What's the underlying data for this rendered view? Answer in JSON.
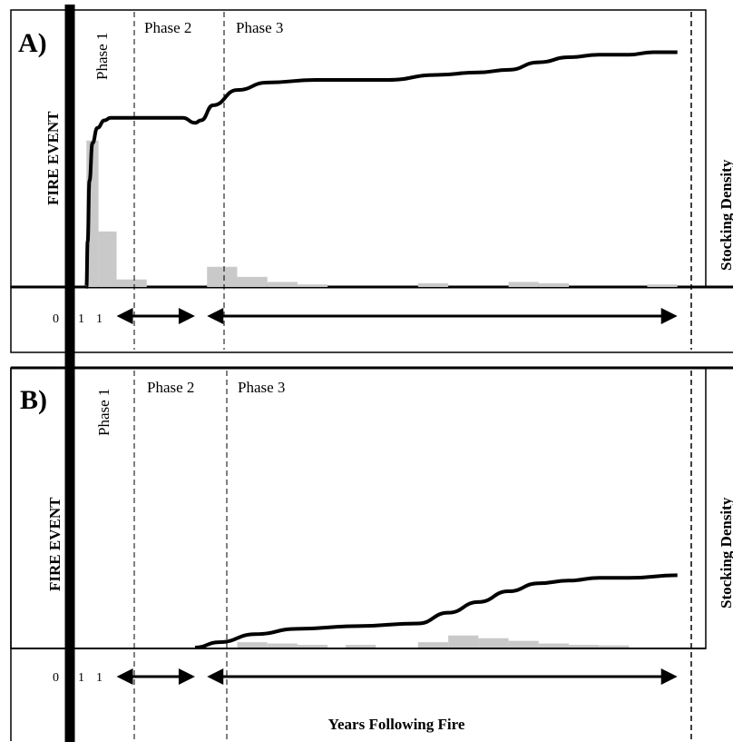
{
  "chart_data": [
    {
      "type": "line",
      "panel_label": "A)",
      "phase_labels": [
        "Phase 1",
        "Phase 2",
        "Phase 3"
      ],
      "event_label": "FIRE EVENT",
      "ylabel": "Stocking Density",
      "x_tick_labels": [
        "0",
        "1",
        "1"
      ],
      "curve": [
        [
          0,
          0.0
        ],
        [
          0.02,
          0.18
        ],
        [
          0.05,
          0.42
        ],
        [
          0.1,
          0.57
        ],
        [
          0.18,
          0.63
        ],
        [
          0.3,
          0.66
        ],
        [
          0.4,
          0.67
        ],
        [
          1,
          0.67
        ],
        [
          1.6,
          0.67
        ],
        [
          1.8,
          0.65
        ],
        [
          1.9,
          0.66
        ],
        [
          2.1,
          0.72
        ],
        [
          2.5,
          0.78
        ],
        [
          3,
          0.81
        ],
        [
          3.8,
          0.82
        ],
        [
          5,
          0.82
        ],
        [
          5.8,
          0.84
        ],
        [
          6.5,
          0.85
        ],
        [
          7,
          0.86
        ],
        [
          7.5,
          0.89
        ],
        [
          8,
          0.91
        ],
        [
          8.5,
          0.92
        ],
        [
          9,
          0.92
        ],
        [
          9.4,
          0.93
        ],
        [
          9.8,
          0.93
        ]
      ],
      "bars": [
        [
          0,
          0.2,
          0.58
        ],
        [
          0.2,
          0.5,
          0.22
        ],
        [
          0.5,
          1,
          0.03
        ],
        [
          2,
          2.5,
          0.08
        ],
        [
          2.5,
          3,
          0.04
        ],
        [
          3,
          3.5,
          0.02
        ],
        [
          3.5,
          4,
          0.01
        ],
        [
          5.5,
          6,
          0.015
        ],
        [
          7,
          7.5,
          0.02
        ],
        [
          7.5,
          8,
          0.015
        ],
        [
          9.3,
          9.8,
          0.01
        ]
      ],
      "arrow_spans": [
        [
          0.5,
          1.8
        ],
        [
          2.0,
          9.8
        ]
      ],
      "xlim": [
        -0.2,
        10
      ],
      "ylim": [
        0,
        1
      ]
    },
    {
      "type": "line",
      "panel_label": "B)",
      "phase_labels": [
        "Phase 1",
        "Phase 2",
        "Phase 3"
      ],
      "event_label": "FIRE EVENT",
      "ylabel": "Stocking Density",
      "x_tick_labels": [
        "0",
        "1",
        "1"
      ],
      "xlabel": "Years Following Fire",
      "curve": [
        [
          1.8,
          0
        ],
        [
          2.2,
          0.02
        ],
        [
          2.8,
          0.05
        ],
        [
          3.5,
          0.07
        ],
        [
          4.5,
          0.08
        ],
        [
          5.5,
          0.09
        ],
        [
          6,
          0.13
        ],
        [
          6.5,
          0.17
        ],
        [
          7,
          0.21
        ],
        [
          7.5,
          0.24
        ],
        [
          8,
          0.25
        ],
        [
          8.5,
          0.26
        ],
        [
          9.0,
          0.26
        ],
        [
          9.8,
          0.27
        ]
      ],
      "bars": [
        [
          2.5,
          3,
          0.02
        ],
        [
          3,
          3.5,
          0.015
        ],
        [
          3.5,
          4,
          0.01
        ],
        [
          4.3,
          4.8,
          0.01
        ],
        [
          5.5,
          6,
          0.02
        ],
        [
          6,
          6.5,
          0.045
        ],
        [
          6.5,
          7,
          0.035
        ],
        [
          7,
          7.5,
          0.025
        ],
        [
          7.5,
          8,
          0.015
        ],
        [
          8,
          8.5,
          0.01
        ],
        [
          8.5,
          9,
          0.008
        ]
      ],
      "arrow_spans": [
        [
          0.5,
          1.8
        ],
        [
          2.0,
          9.8
        ]
      ],
      "xlim": [
        -0.2,
        10
      ],
      "ylim": [
        0,
        1
      ]
    }
  ],
  "colors": {
    "curve": "#000000",
    "bars": "#c9c9c9",
    "frame": "#000000"
  }
}
